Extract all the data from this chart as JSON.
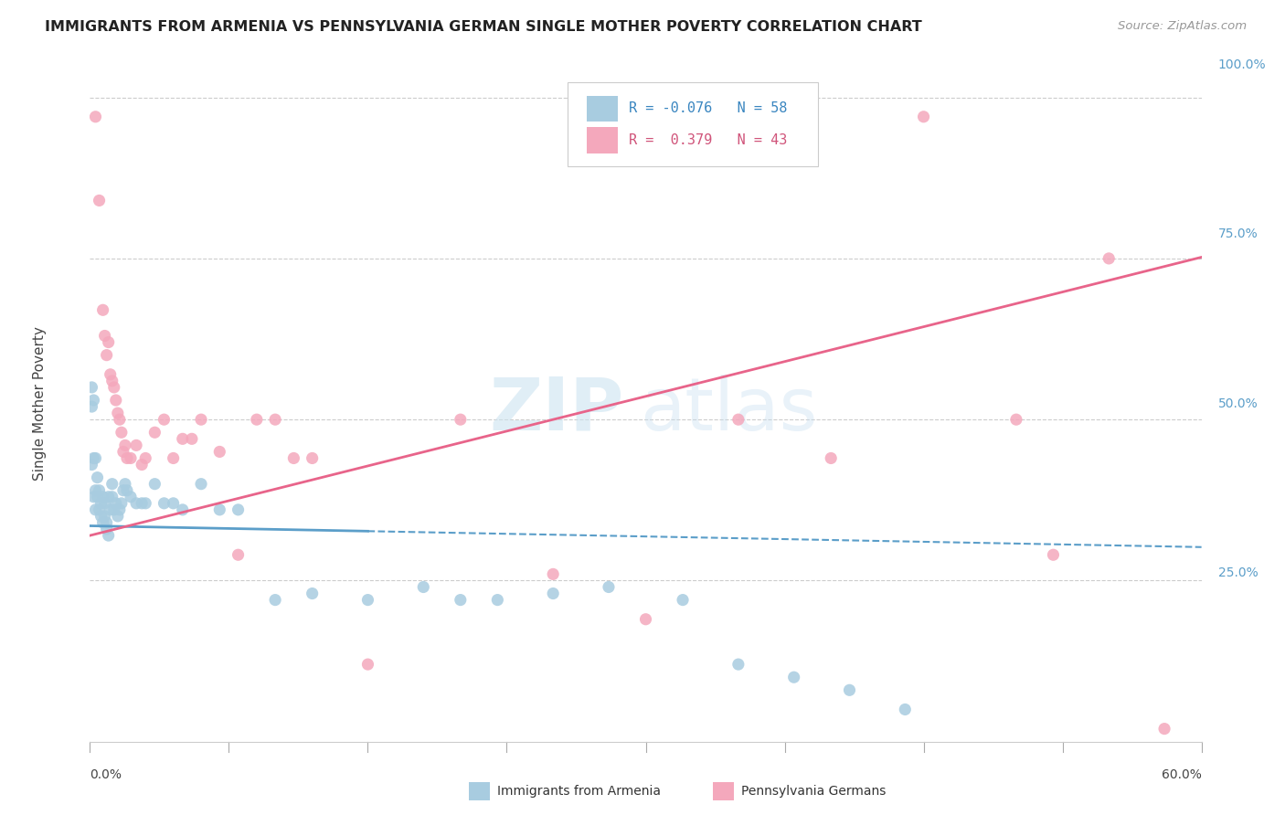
{
  "title": "IMMIGRANTS FROM ARMENIA VS PENNSYLVANIA GERMAN SINGLE MOTHER POVERTY CORRELATION CHART",
  "source": "Source: ZipAtlas.com",
  "ylabel": "Single Mother Poverty",
  "xlim": [
    0.0,
    0.6
  ],
  "ylim": [
    0.0,
    1.05
  ],
  "color_blue": "#a8cce0",
  "color_pink": "#f4a8bc",
  "color_blue_line": "#5b9ec9",
  "color_pink_line": "#e8648a",
  "watermark_zip": "ZIP",
  "watermark_atlas": "atlas",
  "blue_scatter_x": [
    0.001,
    0.001,
    0.001,
    0.002,
    0.002,
    0.002,
    0.003,
    0.003,
    0.003,
    0.004,
    0.004,
    0.005,
    0.005,
    0.006,
    0.006,
    0.007,
    0.007,
    0.008,
    0.008,
    0.009,
    0.009,
    0.01,
    0.01,
    0.011,
    0.012,
    0.012,
    0.013,
    0.014,
    0.015,
    0.016,
    0.017,
    0.018,
    0.019,
    0.02,
    0.022,
    0.025,
    0.028,
    0.03,
    0.035,
    0.04,
    0.045,
    0.05,
    0.06,
    0.07,
    0.08,
    0.1,
    0.12,
    0.15,
    0.18,
    0.2,
    0.22,
    0.25,
    0.28,
    0.32,
    0.35,
    0.38,
    0.41,
    0.44
  ],
  "blue_scatter_y": [
    0.55,
    0.52,
    0.43,
    0.53,
    0.44,
    0.38,
    0.44,
    0.39,
    0.36,
    0.38,
    0.41,
    0.39,
    0.36,
    0.37,
    0.35,
    0.38,
    0.34,
    0.35,
    0.37,
    0.34,
    0.33,
    0.32,
    0.38,
    0.36,
    0.4,
    0.38,
    0.36,
    0.37,
    0.35,
    0.36,
    0.37,
    0.39,
    0.4,
    0.39,
    0.38,
    0.37,
    0.37,
    0.37,
    0.4,
    0.37,
    0.37,
    0.36,
    0.4,
    0.36,
    0.36,
    0.22,
    0.23,
    0.22,
    0.24,
    0.22,
    0.22,
    0.23,
    0.24,
    0.22,
    0.12,
    0.1,
    0.08,
    0.05
  ],
  "pink_scatter_x": [
    0.003,
    0.005,
    0.007,
    0.008,
    0.009,
    0.01,
    0.011,
    0.012,
    0.013,
    0.014,
    0.015,
    0.016,
    0.017,
    0.018,
    0.019,
    0.02,
    0.022,
    0.025,
    0.028,
    0.03,
    0.035,
    0.04,
    0.045,
    0.05,
    0.055,
    0.06,
    0.07,
    0.08,
    0.09,
    0.1,
    0.11,
    0.12,
    0.15,
    0.2,
    0.25,
    0.3,
    0.35,
    0.4,
    0.45,
    0.5,
    0.52,
    0.55,
    0.58
  ],
  "pink_scatter_y": [
    0.97,
    0.84,
    0.67,
    0.63,
    0.6,
    0.62,
    0.57,
    0.56,
    0.55,
    0.53,
    0.51,
    0.5,
    0.48,
    0.45,
    0.46,
    0.44,
    0.44,
    0.46,
    0.43,
    0.44,
    0.48,
    0.5,
    0.44,
    0.47,
    0.47,
    0.5,
    0.45,
    0.29,
    0.5,
    0.5,
    0.44,
    0.44,
    0.12,
    0.5,
    0.26,
    0.19,
    0.5,
    0.44,
    0.97,
    0.5,
    0.29,
    0.75,
    0.02
  ],
  "blue_line_intercept": 0.335,
  "blue_line_slope": -0.055,
  "blue_line_solid_end": 0.15,
  "pink_line_intercept": 0.32,
  "pink_line_slope": 0.72
}
